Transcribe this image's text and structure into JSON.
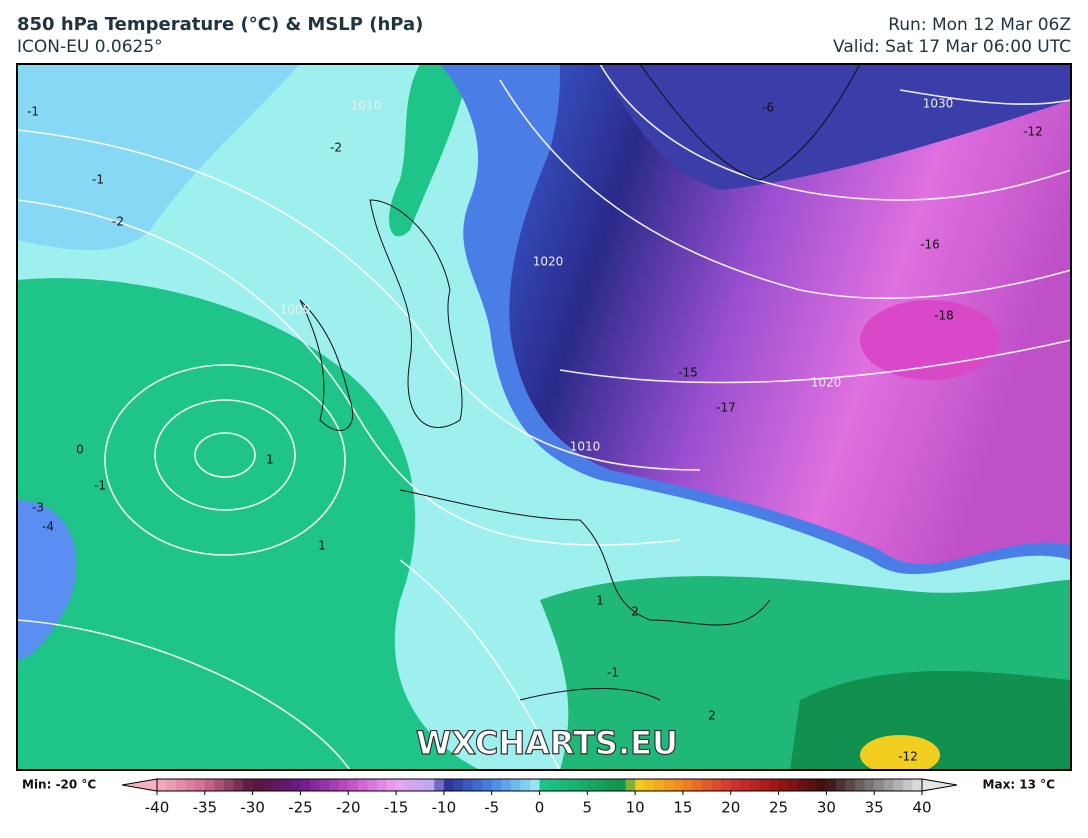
{
  "header": {
    "title": "850 hPa Temperature (°C) & MSLP (hPa)",
    "model": "ICON-EU 0.0625°",
    "run": "Run: Mon 12 Mar 06Z",
    "valid": "Valid: Sat 17 Mar 06:00 UTC"
  },
  "map": {
    "watermark": "WXCHARTS.EU",
    "contour_labels": [
      "-1",
      "-1",
      "-2",
      "-2",
      "-6",
      "-12",
      "-16",
      "-18",
      "-17",
      "-15",
      "0",
      "1",
      "1",
      "-1",
      "-3",
      "-4",
      "1",
      "2",
      "-1",
      "2",
      "-12",
      "1030",
      "1020",
      "1010",
      "1000",
      "1010",
      "1020"
    ]
  },
  "colorbar": {
    "min_label": "Min: -20 °C",
    "max_label": "Max: 13 °C",
    "range": [
      -40,
      40
    ],
    "ticks": [
      -40,
      -35,
      -30,
      -25,
      -20,
      -15,
      -10,
      -5,
      0,
      5,
      10,
      15,
      20,
      25,
      30,
      35,
      40
    ]
  }
}
